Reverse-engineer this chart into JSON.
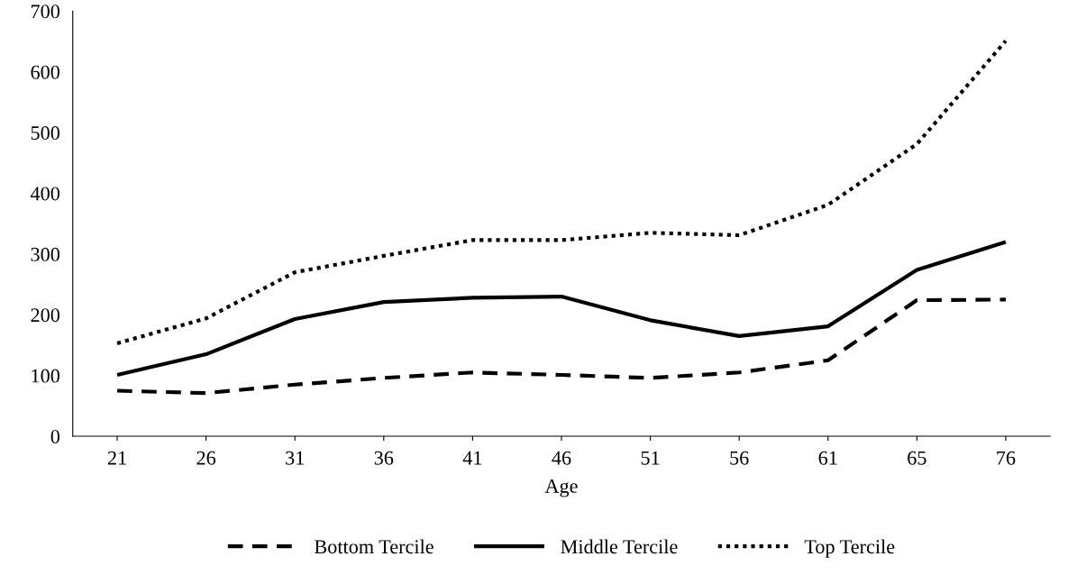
{
  "chart_data": {
    "type": "line",
    "xlabel": "Age",
    "categories": [
      "21",
      "26",
      "31",
      "36",
      "41",
      "46",
      "51",
      "56",
      "61",
      "65",
      "76"
    ],
    "series": [
      {
        "name": "Bottom Tercile",
        "color": "#000000",
        "line_style": "dashed",
        "values": [
          75,
          71,
          85,
          96,
          105,
          101,
          96,
          105,
          125,
          224,
          225
        ]
      },
      {
        "name": "Middle Tercile",
        "color": "#000000",
        "line_style": "solid",
        "values": [
          101,
          135,
          193,
          221,
          228,
          230,
          191,
          165,
          181,
          274,
          320
        ]
      },
      {
        "name": "Top Tercile",
        "color": "#000000",
        "line_style": "dotted",
        "values": [
          153,
          194,
          270,
          297,
          323,
          323,
          335,
          331,
          381,
          481,
          651
        ]
      }
    ],
    "ylim": [
      0,
      700
    ],
    "yticks": [
      0,
      100,
      200,
      300,
      400,
      500,
      600,
      700
    ],
    "grid": false,
    "legend": "bottom",
    "marker": "none"
  }
}
